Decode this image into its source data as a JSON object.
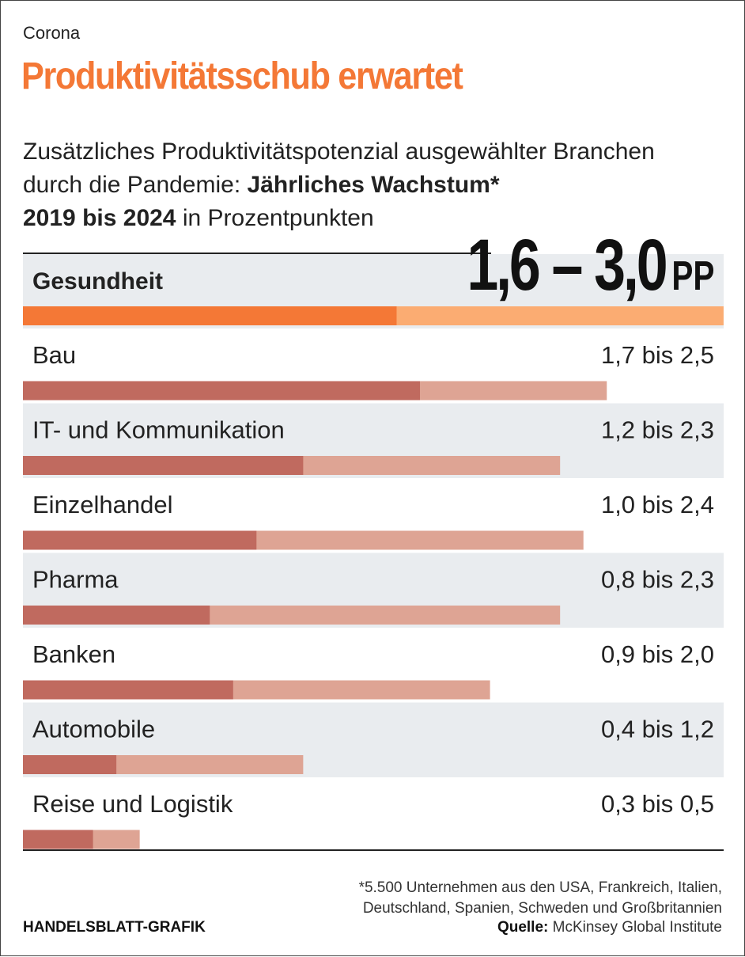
{
  "header": {
    "kicker": "Corona",
    "title": "Produktivitätsschub erwartet",
    "subtitle_part1": "Zusätzliches Produktivitätspotenzial ausgewählter Branchen durch die Pandemie: ",
    "subtitle_bold1": "Jährliches Wachstum*",
    "subtitle_bold2": "2019 bis 2024",
    "subtitle_part2": " in Prozentpunkten"
  },
  "highlight": {
    "value": "1,6 – 3,0",
    "unit": "PP"
  },
  "colors": {
    "highlight_low": "#f47836",
    "highlight_high": "#fbac72",
    "bar_low": "#c06a5f",
    "bar_high": "#dea494",
    "row_alt_bg": "#e9ecef"
  },
  "chart_data": {
    "type": "bar",
    "orientation": "horizontal",
    "scale_max": 3.0,
    "categories": [
      "Gesundheit",
      "Bau",
      "IT- und Kommunikation",
      "Einzelhandel",
      "Pharma",
      "Banken",
      "Automobile",
      "Reise und Logistik"
    ],
    "series": [
      {
        "name": "",
        "values": [
          1.6,
          1.7,
          1.2,
          1.0,
          0.8,
          0.9,
          0.4,
          0.3
        ]
      },
      {
        "name": "",
        "values": [
          3.0,
          2.5,
          2.3,
          2.4,
          2.3,
          2.0,
          1.2,
          0.5
        ]
      }
    ],
    "labels": [
      "",
      "1,7 bis 2,5",
      "1,2 bis 2,3",
      "1,0 bis 2,4",
      "0,8 bis 2,3",
      "0,9 bis 2,0",
      "0,4 bis 1,2",
      "0,3 bis 0,5"
    ],
    "title": "Produktivitätsschub erwartet",
    "xlabel": "",
    "ylabel": "",
    "grid": false
  },
  "footer": {
    "footnote_line1": "*5.500 Unternehmen aus den USA, Frankreich, Italien,",
    "footnote_line2": "Deutschland, Spanien, Schweden und Großbritannien",
    "source_label": "Quelle:",
    "source_text": " McKinsey Global Institute",
    "brand": "HANDELSBLATT-GRAFIK"
  }
}
